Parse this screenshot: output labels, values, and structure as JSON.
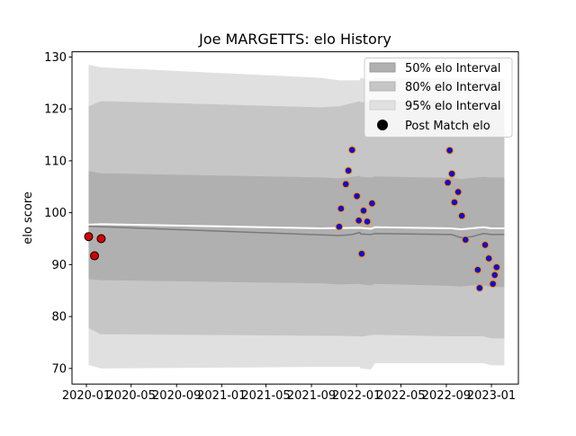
{
  "chart_data": {
    "type": "scatter",
    "title": "Joe MARGETTS: elo History",
    "ylabel": "elo score",
    "xlabel": "",
    "xlim": [
      "2019-11-23",
      "2023-03-15"
    ],
    "ylim": [
      67,
      131
    ],
    "yticks": [
      70,
      80,
      90,
      100,
      110,
      120,
      130
    ],
    "xticks": [
      "2020-01",
      "2020-05",
      "2020-09",
      "2021-01",
      "2021-05",
      "2021-09",
      "2022-01",
      "2022-05",
      "2022-09",
      "2023-01"
    ],
    "grid": false,
    "legend_position": "upper right",
    "legend": [
      {
        "label": "50% elo Interval",
        "kind": "patch",
        "color": "#b0b0b0"
      },
      {
        "label": "80% elo Interval",
        "kind": "patch",
        "color": "#c6c6c6"
      },
      {
        "label": "95% elo Interval",
        "kind": "patch",
        "color": "#e0e0e0"
      },
      {
        "label": "Post Match elo",
        "kind": "marker",
        "color": "#000000"
      }
    ],
    "bands": [
      {
        "name": "95% elo Interval",
        "color": "#e0e0e0",
        "x": [
          "2020-01-07",
          "2020-02-10",
          "2020-02-10",
          "2021-09-25",
          "2021-11-15",
          "2022-01-10",
          "2022-01-12",
          "2022-02-08",
          "2022-02-20",
          "2022-09-15",
          "2022-10-10",
          "2022-11-10",
          "2022-12-10",
          "2023-01-01",
          "2023-02-05"
        ],
        "upper": [
          128.5,
          128.0,
          128.0,
          126.0,
          125.5,
          125.5,
          126.0,
          125.5,
          126.0,
          126.0,
          126.0,
          125.8,
          126.0,
          125.8,
          125.8
        ],
        "lower": [
          70.7,
          70.0,
          70.0,
          70.3,
          70.3,
          70.3,
          70.0,
          69.8,
          71.0,
          71.0,
          71.0,
          71.0,
          71.0,
          70.6,
          70.6
        ]
      },
      {
        "name": "80% elo Interval",
        "color": "#c6c6c6",
        "x": [
          "2020-01-07",
          "2020-02-10",
          "2020-02-10",
          "2021-09-25",
          "2021-11-15",
          "2022-01-10",
          "2022-01-12",
          "2022-02-08",
          "2022-02-20",
          "2022-09-15",
          "2022-10-10",
          "2022-11-10",
          "2022-12-10",
          "2023-01-01",
          "2023-02-05"
        ],
        "upper": [
          120.5,
          121.5,
          121.5,
          120.3,
          120.5,
          121.5,
          121.3,
          121.3,
          121.5,
          121.3,
          121.0,
          121.0,
          121.3,
          121.0,
          121.0
        ],
        "lower": [
          77.8,
          76.5,
          76.6,
          76.3,
          76.3,
          76.2,
          76.1,
          76.4,
          76.5,
          76.2,
          76.2,
          76.2,
          76.2,
          75.8,
          75.8
        ]
      },
      {
        "name": "50% elo Interval",
        "color": "#b0b0b0",
        "x": [
          "2020-01-07",
          "2020-02-10",
          "2020-02-10",
          "2021-09-25",
          "2021-11-15",
          "2022-01-10",
          "2022-01-12",
          "2022-02-08",
          "2022-02-20",
          "2022-09-15",
          "2022-10-10",
          "2022-11-10",
          "2022-12-10",
          "2023-01-01",
          "2023-02-05"
        ],
        "upper": [
          108.0,
          107.6,
          107.6,
          106.8,
          106.6,
          107.1,
          106.9,
          106.8,
          107.0,
          106.7,
          106.5,
          106.7,
          106.9,
          106.8,
          106.8
        ],
        "lower": [
          87.2,
          87.0,
          87.0,
          86.4,
          86.2,
          86.3,
          86.2,
          86.0,
          86.3,
          85.9,
          85.8,
          86.0,
          86.0,
          85.7,
          85.7
        ]
      }
    ],
    "lines": [
      {
        "role": "upper-reference",
        "color": "#ffffff",
        "x": [
          "2020-01-07",
          "2020-02-10",
          "2020-02-10",
          "2021-09-25",
          "2022-01-10",
          "2022-02-08",
          "2022-02-20",
          "2022-09-15",
          "2022-10-10",
          "2022-12-10",
          "2023-01-01",
          "2023-02-05"
        ],
        "y": [
          97.7,
          97.8,
          97.8,
          97.0,
          97.1,
          96.9,
          97.2,
          97.0,
          96.8,
          97.2,
          97.0,
          97.0
        ]
      },
      {
        "role": "median",
        "color": "#7a7a7a",
        "x": [
          "2020-01-07",
          "2020-02-10",
          "2020-02-10",
          "2021-11-15",
          "2021-12-20",
          "2022-01-10",
          "2022-01-12",
          "2022-02-08",
          "2022-02-20",
          "2022-09-15",
          "2022-10-10",
          "2022-11-10",
          "2022-12-10",
          "2023-01-01",
          "2023-02-05"
        ],
        "y": [
          97.4,
          97.3,
          97.3,
          95.6,
          95.8,
          96.2,
          95.9,
          95.8,
          96.0,
          95.8,
          95.2,
          95.4,
          96.0,
          95.8,
          95.8
        ]
      }
    ],
    "series": [
      {
        "name": "Post Match elo",
        "face_color": "#d40000",
        "edge_color": "#000000",
        "points": [
          {
            "x": "2020-01-07",
            "y": 95.4
          },
          {
            "x": "2020-01-23",
            "y": 91.7
          },
          {
            "x": "2020-02-10",
            "y": 95.0
          }
        ]
      },
      {
        "name": "",
        "face_color": "#1010c8",
        "edge_color": "#ff8c00",
        "points": [
          {
            "x": "2021-11-15",
            "y": 97.3
          },
          {
            "x": "2021-11-20",
            "y": 100.8
          },
          {
            "x": "2021-12-03",
            "y": 105.5
          },
          {
            "x": "2021-12-10",
            "y": 108.1
          },
          {
            "x": "2021-12-20",
            "y": 112.1
          },
          {
            "x": "2022-01-02",
            "y": 103.2
          },
          {
            "x": "2022-01-07",
            "y": 98.5
          },
          {
            "x": "2022-01-15",
            "y": 92.1
          },
          {
            "x": "2022-01-20",
            "y": 100.4
          },
          {
            "x": "2022-01-30",
            "y": 98.3
          },
          {
            "x": "2022-02-12",
            "y": 101.8
          },
          {
            "x": "2022-09-05",
            "y": 105.8
          },
          {
            "x": "2022-09-10",
            "y": 112.0
          },
          {
            "x": "2022-09-16",
            "y": 107.5
          },
          {
            "x": "2022-09-23",
            "y": 102.0
          },
          {
            "x": "2022-10-03",
            "y": 104.0
          },
          {
            "x": "2022-10-13",
            "y": 99.4
          },
          {
            "x": "2022-10-23",
            "y": 94.8
          },
          {
            "x": "2022-11-25",
            "y": 89.0
          },
          {
            "x": "2022-11-30",
            "y": 85.5
          },
          {
            "x": "2022-12-15",
            "y": 93.8
          },
          {
            "x": "2022-12-25",
            "y": 91.2
          },
          {
            "x": "2023-01-05",
            "y": 86.3
          },
          {
            "x": "2023-01-10",
            "y": 88.0
          },
          {
            "x": "2023-01-15",
            "y": 89.5
          }
        ]
      }
    ]
  }
}
